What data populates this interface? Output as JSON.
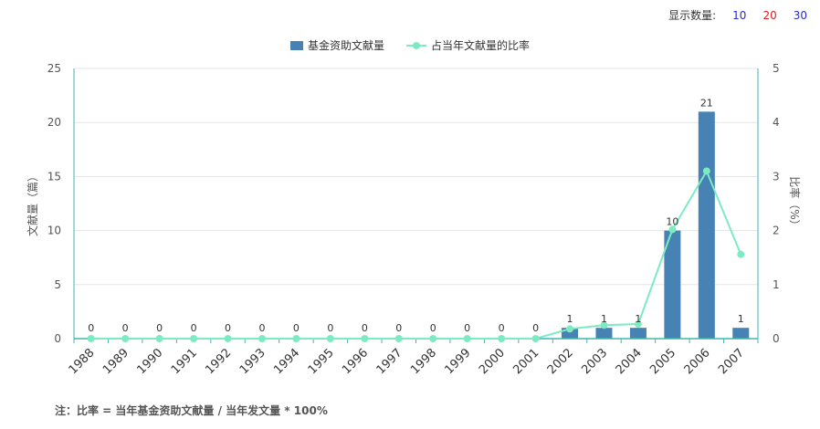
{
  "display_count": {
    "label": "显示数量:",
    "options": [
      "10",
      "20",
      "30"
    ]
  },
  "footnote": "注：比率 = 当年基金资助文献量 / 当年发文量 * 100%",
  "colors": {
    "bar": "#4682b4",
    "line": "#7debc2",
    "axis": "#41b6b0",
    "grid": "#e6e6e6"
  },
  "chart_data": {
    "type": "bar",
    "categories": [
      "1988",
      "1989",
      "1990",
      "1991",
      "1992",
      "1993",
      "1994",
      "1995",
      "1996",
      "1997",
      "1998",
      "1999",
      "2000",
      "2001",
      "2002",
      "2003",
      "2004",
      "2005",
      "2006",
      "2007"
    ],
    "series": [
      {
        "name": "基金资助文献量",
        "type": "bar",
        "axis": "left",
        "values": [
          0,
          0,
          0,
          0,
          0,
          0,
          0,
          0,
          0,
          0,
          0,
          0,
          0,
          0,
          1,
          1,
          1,
          10,
          21,
          1
        ]
      },
      {
        "name": "占当年文献量的比率",
        "type": "line",
        "axis": "right",
        "values": [
          0,
          0,
          0,
          0,
          0,
          0,
          0,
          0,
          0,
          0,
          0,
          0,
          0,
          0,
          0.18,
          0.25,
          0.27,
          2.02,
          3.1,
          1.56
        ]
      }
    ],
    "ylabel_left": "文献量（篇）",
    "ylabel_right": "比率（%）",
    "ylim_left": [
      0,
      25
    ],
    "yticks_left": [
      "0",
      "5",
      "10",
      "15",
      "20",
      "25"
    ],
    "ylim_right": [
      0,
      5
    ],
    "yticks_right": [
      "0",
      "1",
      "2",
      "3",
      "4",
      "5"
    ],
    "grid": true,
    "legend": "top-center"
  }
}
